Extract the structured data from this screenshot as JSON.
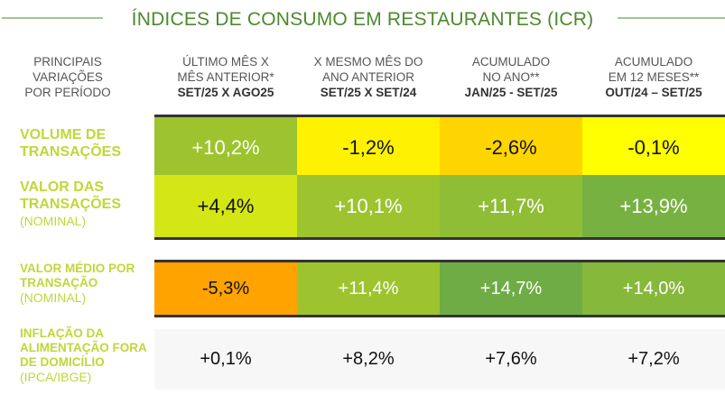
{
  "title": "ÍNDICES DE CONSUMO EM RESTAURANTES (ICR)",
  "headers": [
    {
      "l1": "PRINCIPAIS",
      "l2": "VARIAÇÕES",
      "l3": "POR PERÍODO"
    },
    {
      "l1": "ÚLTIMO MÊS X",
      "l2": "MÊS ANTERIOR*",
      "l3": "SET/25 X AGO25"
    },
    {
      "l1": "X MESMO MÊS DO",
      "l2": "ANO ANTERIOR",
      "l3": "SET/25 X SET/24"
    },
    {
      "l1": "ACUMULADO",
      "l2": "NO ANO**",
      "l3": "JAN/25 - SET/25"
    },
    {
      "l1": "ACUMULADO",
      "l2": "EM 12 MESES**",
      "l3": "OUT/24 – SET/25"
    }
  ],
  "rows": [
    {
      "label": "VOLUME DE TRANSAÇÕES",
      "sub": "",
      "values": [
        "+10,2%",
        "-1,2%",
        "-2,6%",
        "-0,1%"
      ],
      "colors": [
        "#9dc42f",
        "#fff200",
        "#ffd500",
        "#ffff00"
      ]
    },
    {
      "label": "VALOR DAS TRANSAÇÕES",
      "sub": "(NOMINAL)",
      "values": [
        "+4,4%",
        "+10,1%",
        "+11,7%",
        "+13,9%"
      ],
      "colors": [
        "#d4e615",
        "#9dc42f",
        "#8fbd36",
        "#77b141"
      ]
    },
    {
      "label": "VALOR MÉDIO POR TRANSAÇÃO",
      "sub": "(NOMINAL)",
      "values": [
        "-5,3%",
        "+11,4%",
        "+14,7%",
        "+14,0%"
      ],
      "colors": [
        "#ffa300",
        "#9dc42f",
        "#6fac45",
        "#86b83b"
      ]
    },
    {
      "label": "INFLAÇÃO DA ALIMENTAÇÃO FORA DE DOMICÍLIO",
      "sub": "(IPCA/IBGE)",
      "values": [
        "+0,1%",
        "+8,2%",
        "+7,6%",
        "+7,2%"
      ],
      "colors": [
        "#f7f7f7",
        "#f7f7f7",
        "#f7f7f7",
        "#f7f7f7"
      ]
    }
  ]
}
